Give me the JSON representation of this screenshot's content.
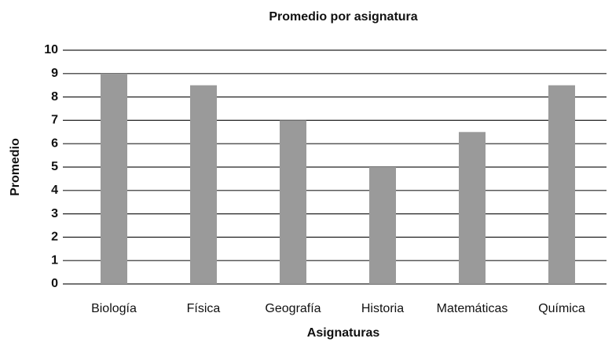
{
  "chart_data": {
    "type": "bar",
    "title": "Promedio por asignatura",
    "x_label": "Asignaturas",
    "y_label": "Promedio",
    "categories": [
      "Biología",
      "Física",
      "Geografía",
      "Historia",
      "Matemáticas",
      "Química"
    ],
    "values": [
      9,
      8.5,
      7,
      5,
      6.5,
      8.5
    ],
    "color": "#9a9a9a",
    "ylim": [
      0,
      10
    ],
    "yticks": [
      0,
      1,
      2,
      3,
      4,
      5,
      6,
      7,
      8,
      9,
      10
    ],
    "grid": true
  }
}
